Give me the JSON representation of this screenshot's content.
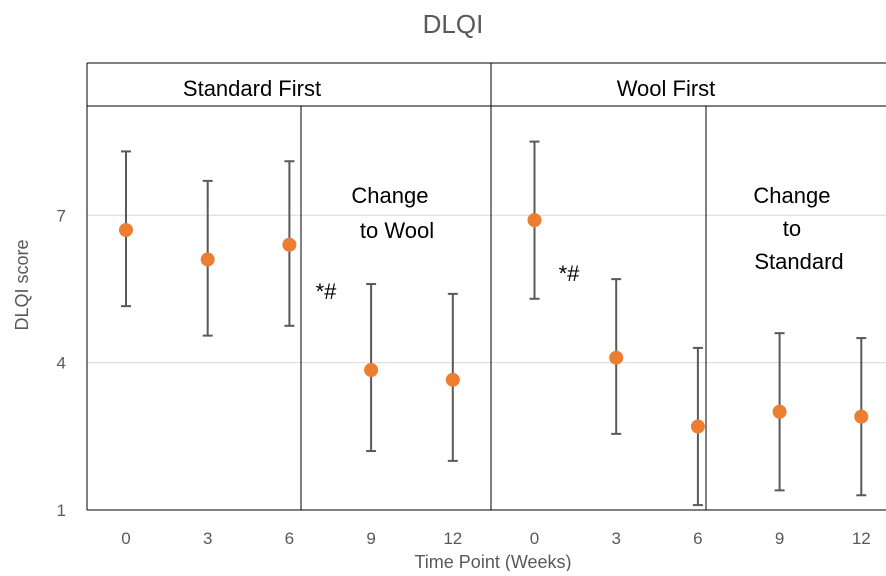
{
  "chart_data": {
    "type": "scatter",
    "title": "DLQI",
    "xlabel": "Time Point (Weeks)",
    "ylabel": "DLQI score",
    "ylim": [
      1,
      10.1
    ],
    "yticks": [
      {
        "value": 1,
        "label": "1"
      },
      {
        "value": 4,
        "label": "4"
      },
      {
        "value": 7,
        "label": "7"
      }
    ],
    "grid": true,
    "categories": [
      "0",
      "3",
      "6",
      "9",
      "12",
      "0",
      "3",
      "6",
      "9",
      "12"
    ],
    "series": [
      {
        "color": "#ed7d31",
        "values": [
          6.7,
          6.1,
          6.4,
          3.85,
          3.65,
          6.9,
          4.1,
          2.7,
          3.0,
          2.9
        ],
        "error_low": [
          5.15,
          4.55,
          4.75,
          2.2,
          2.0,
          5.3,
          2.55,
          1.1,
          1.4,
          1.3
        ],
        "error_high": [
          8.3,
          7.7,
          8.1,
          5.6,
          5.4,
          8.5,
          5.7,
          4.3,
          4.6,
          4.5
        ],
        "error_color": "#595959"
      }
    ],
    "groups": [
      {
        "label": "Standard First",
        "from": 0,
        "to": 4
      },
      {
        "label": "Wool First",
        "from": 5,
        "to": 9
      }
    ],
    "annotations": [
      {
        "id": "change-to-wool",
        "lines": [
          "Change",
          "to Wool"
        ]
      },
      {
        "id": "change-to-standard",
        "lines": [
          "Change",
          "to",
          "Standard"
        ]
      },
      {
        "id": "sig-standard",
        "text": "*#"
      },
      {
        "id": "sig-wool",
        "text": "*#"
      }
    ]
  }
}
